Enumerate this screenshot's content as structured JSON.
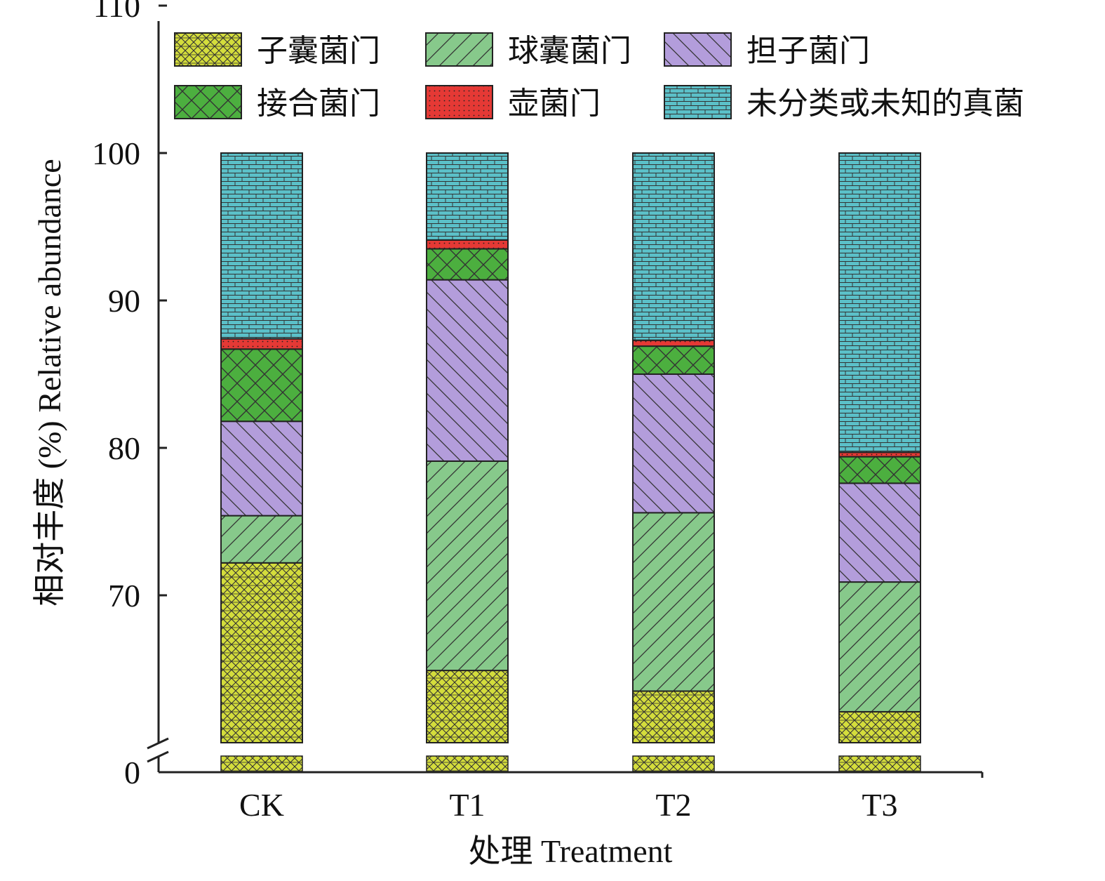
{
  "chart_data": {
    "type": "bar",
    "stacked": true,
    "broken_y_axis": true,
    "categories": [
      "CK",
      "T1",
      "T2",
      "T3"
    ],
    "series": [
      {
        "name": "子囊菌门",
        "values": [
          72.2,
          64.9,
          63.5,
          62.1
        ],
        "color": "#d4dd3c",
        "pattern": "brick-dense"
      },
      {
        "name": "球囊菌门",
        "values": [
          3.2,
          14.2,
          12.1,
          8.8
        ],
        "color": "#87c98b",
        "pattern": "diag-up"
      },
      {
        "name": "担子菌门",
        "values": [
          6.4,
          12.3,
          9.4,
          6.7
        ],
        "color": "#b39ddb",
        "pattern": "diag-down"
      },
      {
        "name": "接合菌门",
        "values": [
          4.9,
          2.1,
          1.9,
          1.8
        ],
        "color": "#4caf3f",
        "pattern": "crosshatch"
      },
      {
        "name": "壶菌门",
        "values": [
          0.7,
          0.6,
          0.4,
          0.3
        ],
        "color": "#e53935",
        "pattern": "dots"
      },
      {
        "name": "未分类或未知的真菌",
        "values": [
          12.6,
          5.9,
          12.7,
          20.3
        ],
        "color": "#5bc0c8",
        "pattern": "brick"
      }
    ],
    "y_ticks": [
      "0",
      "70",
      "80",
      "90",
      "100",
      "110"
    ],
    "ylim_upper": [
      60,
      110
    ],
    "xlabel": "处理 Treatment",
    "ylabel": "相对丰度 (%) Relative abundance",
    "legend_position": "top"
  }
}
